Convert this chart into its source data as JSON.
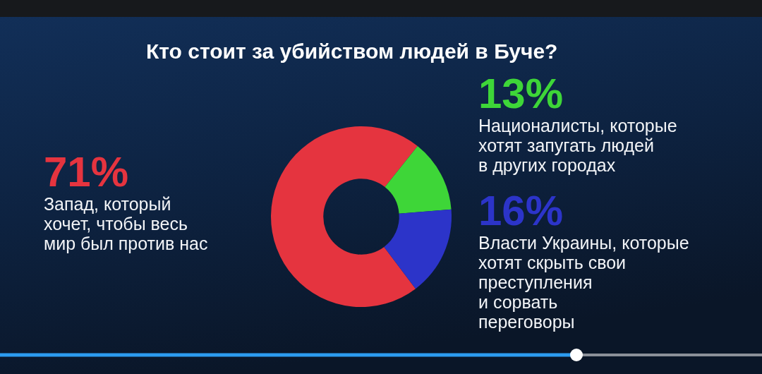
{
  "chart_data": {
    "type": "donut",
    "title": "Кто стоит за убийством людей в Буче?",
    "categories": [
      "Запад, который\nхочет, чтобы весь\nмир был против нас",
      "Националисты, которые\nхотят запугать людей\nв других городах",
      "Власти Украины, которые\nхотят скрыть свои\nпреступления\nи сорвать\nпереговоры"
    ],
    "values": [
      71,
      13,
      16
    ],
    "colors": [
      "#e5343f",
      "#3ed638",
      "#2c34c9"
    ],
    "value_labels": [
      "71%",
      "13%",
      "16%"
    ]
  }
}
